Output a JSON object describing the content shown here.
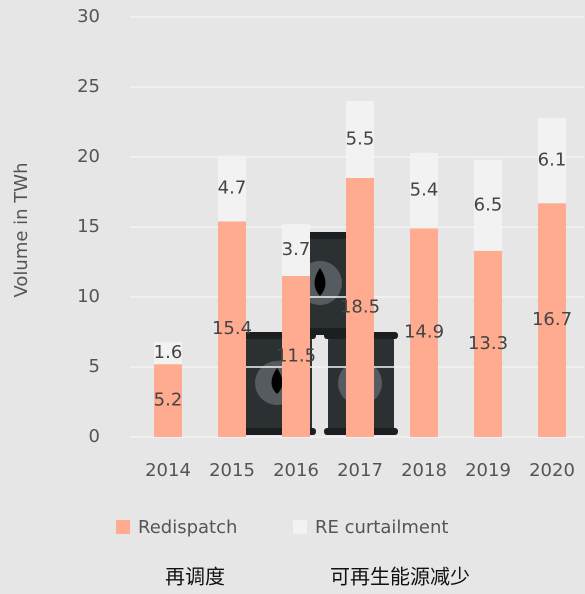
{
  "chart_data": {
    "type": "stacked_bar",
    "y_label": "Volume in TWh",
    "categories": [
      "2014",
      "2015",
      "2016",
      "2017",
      "2018",
      "2019",
      "2020"
    ],
    "series": [
      {
        "name": "Redispatch",
        "color": "#ffab8f",
        "values": [
          5.2,
          15.4,
          11.5,
          18.5,
          14.9,
          13.3,
          16.7
        ]
      },
      {
        "name": "RE curtailment",
        "color": "#f2f2f2",
        "values": [
          1.6,
          4.7,
          3.7,
          5.5,
          5.4,
          6.5,
          6.1
        ]
      }
    ],
    "ylim": [
      0,
      30
    ],
    "yticks": [
      0,
      5,
      10,
      15,
      20,
      25,
      30
    ],
    "grid": true,
    "annotations": [
      "再调度",
      "可再生能源减少"
    ]
  }
}
